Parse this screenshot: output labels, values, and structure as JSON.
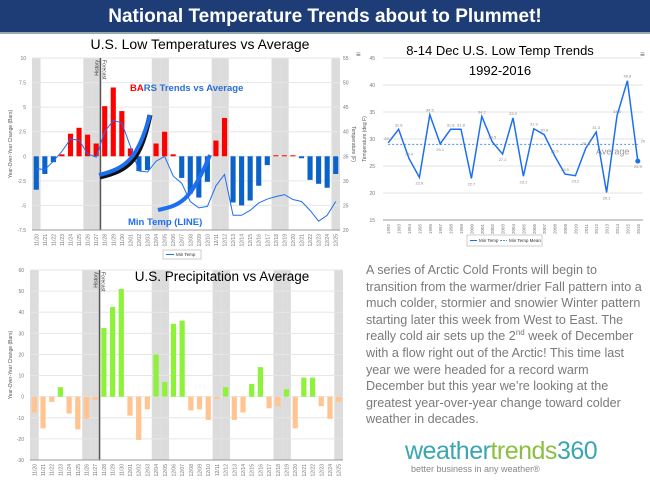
{
  "header": {
    "title": "National Temperature Trends about to Plummet!"
  },
  "chart_data": [
    {
      "id": "low",
      "type": "bar+line",
      "title": "U.S. Low Temperatures vs Average",
      "ylabel": "Year-Over-Year Change (Bars)",
      "y2label": "Temperature (F)",
      "ylim": [
        -7.5,
        10
      ],
      "yticks": [
        "10",
        "7.5",
        "5",
        "2.5",
        "0",
        "-2.5",
        "-5",
        "-7.5"
      ],
      "y2lim": [
        20,
        55
      ],
      "y2ticks": [
        "55",
        "50",
        "45",
        "40",
        "35",
        "30",
        "25",
        "20"
      ],
      "categories": [
        "11/20",
        "11/21",
        "11/22",
        "11/23",
        "11/24",
        "11/25",
        "11/26",
        "11/27",
        "11/28",
        "11/29",
        "11/30",
        "12/01",
        "12/02",
        "12/03",
        "12/04",
        "12/05",
        "12/06",
        "12/07",
        "12/08",
        "12/09",
        "12/10",
        "12/11",
        "12/12",
        "12/13",
        "12/14",
        "12/15",
        "12/16",
        "12/17",
        "12/18",
        "12/19",
        "12/20",
        "12/21",
        "12/22",
        "12/23",
        "12/24",
        "12/25"
      ],
      "bars": [
        -3.4,
        -1.8,
        -0.6,
        0.2,
        2.3,
        2.9,
        2.2,
        1.3,
        5.1,
        7.0,
        4.6,
        0.8,
        -1.5,
        -1.4,
        1.3,
        2.5,
        0.2,
        -2.2,
        -3.8,
        -4.2,
        -2.6,
        1.6,
        3.9,
        -4.7,
        -5.0,
        -4.5,
        -3.0,
        -0.9,
        0.1,
        0.1,
        0.1,
        -0.2,
        -2.4,
        -2.8,
        -3.2,
        -1.8
      ],
      "line": {
        "name": "Min Temp",
        "values": [
          32.5,
          32.3,
          34,
          36,
          38.5,
          38.3,
          35.5,
          34.8,
          40,
          42.3,
          41.8,
          37,
          32,
          31.8,
          34,
          35,
          31,
          29.5,
          25.8,
          24.5,
          24.8,
          29,
          31.3,
          23,
          23,
          24,
          25.5,
          26.3,
          26.8,
          27.2,
          26.2,
          25.8,
          24,
          21.8,
          23,
          25.8
        ]
      },
      "history_label": "History",
      "forecast_label": "Forecast",
      "annotations": {
        "bars_a": "BA",
        "bars_b": "RS Trends vs Average",
        "line": "Min Temp (LINE)"
      },
      "colors": {
        "warm": "#ff0000",
        "cold": "#0b63c9",
        "line": "#1e6ff0"
      }
    },
    {
      "id": "dec",
      "type": "line",
      "title": [
        "8-14 Dec U.S. Low Temp Trends",
        "1992-2016"
      ],
      "ylabel": "Temperature (deg F)",
      "ylim": [
        15,
        45
      ],
      "yticks": [
        "45",
        "40",
        "35",
        "30",
        "25",
        "20",
        "15"
      ],
      "categories": [
        "1992",
        "1993",
        "1994",
        "1995",
        "1996",
        "1997",
        "1998",
        "1999",
        "2000",
        "2001",
        "2002",
        "2003",
        "2004",
        "2005",
        "2006",
        "2007",
        "2008",
        "2009",
        "2010",
        "2011",
        "2012",
        "2013",
        "2014",
        "2015",
        "2016"
      ],
      "values": [
        29.3,
        31.8,
        26.4,
        22.9,
        34.5,
        29.1,
        31.8,
        31.8,
        22.7,
        34.2,
        29.5,
        27.2,
        33.9,
        23.1,
        31.9,
        30.8,
        26.9,
        23.5,
        23.2,
        28.3,
        31.3,
        20.1,
        34.3,
        40.8,
        25.9
      ],
      "mean": 29,
      "mean_label": "29",
      "average_label": "Average",
      "legend": [
        "Min Temp",
        "Min Temp Mean"
      ]
    },
    {
      "id": "precip",
      "type": "bar",
      "title": "U.S. Precipitation vs Average",
      "ylabel": "Year-Over-Year Change (Bars)",
      "ylim": [
        -30,
        60
      ],
      "yticks": [
        "60",
        "50",
        "40",
        "30",
        "20",
        "10",
        "0",
        "-10",
        "-20",
        "-30"
      ],
      "categories": [
        "11/20",
        "11/21",
        "11/22",
        "11/23",
        "11/24",
        "11/25",
        "11/26",
        "11/27",
        "11/28",
        "11/29",
        "11/30",
        "12/01",
        "12/02",
        "12/03",
        "12/04",
        "12/05",
        "12/06",
        "12/07",
        "12/08",
        "12/09",
        "12/10",
        "12/11",
        "12/12",
        "12/13",
        "12/14",
        "12/15",
        "12/16",
        "12/17",
        "12/18",
        "12/19",
        "12/20",
        "12/21",
        "12/22",
        "12/23",
        "12/24",
        "12/25"
      ],
      "values": [
        -7.5,
        -15,
        -2.5,
        4.5,
        -8,
        -15.5,
        -10.5,
        -1.5,
        32.5,
        42.5,
        51,
        -9,
        -20.5,
        -6,
        20,
        7,
        34.5,
        36,
        -6.5,
        -6,
        -11,
        -1,
        4.5,
        -11,
        -7.5,
        6,
        14,
        -5.5,
        -4.5,
        3.5,
        -15,
        9,
        9,
        -4.5,
        -10.5,
        -2.5
      ],
      "history_label": "History",
      "forecast_label": "Forecast",
      "colors": {
        "wet": "#8ef23a",
        "dry": "#ffc48f"
      }
    }
  ],
  "blurb": {
    "p1": "A series of Arctic Cold Fronts will begin to transition from the warmer/drier Fall pattern into a much colder, stormier and snowier Winter pattern starting later this week from West to East.  The really cold air sets up the 2",
    "sup": "nd",
    "p2": " week of December with a flow right out of the Arctic!  This time last year we were headed for a record warm December but this year we’re looking at the greatest year-over-year change toward colder weather in decades."
  },
  "logo": {
    "a": "weather",
    "b": "trends",
    "c": "360",
    "tagline": "better business in any weather®"
  }
}
